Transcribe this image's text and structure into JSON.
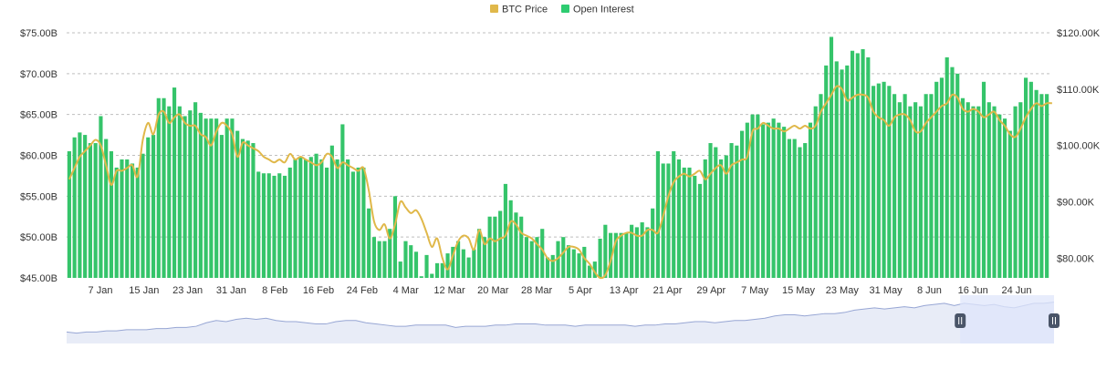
{
  "legend": {
    "items": [
      {
        "label": "BTC Price",
        "color": "#e0b84a"
      },
      {
        "label": "Open Interest",
        "color": "#2ecc71"
      }
    ],
    "position": "top-center"
  },
  "colors": {
    "oi_bar": "#35c46a",
    "price_line": "#e0b84a",
    "grid": "#bfbfbf",
    "navigator_fill": "#e8ecf7",
    "navigator_line": "#97a6d4",
    "navigator_selection": "#dfe6fb",
    "handle": "#4a5568"
  },
  "chart_data": {
    "type": "bar",
    "title": "",
    "grid": true,
    "y_left": {
      "min": 45,
      "max": 75,
      "unit": "B",
      "ticks": [
        "$75.00B",
        "$70.00B",
        "$65.00B",
        "$60.00B",
        "$55.00B",
        "$50.00B",
        "$45.00B"
      ]
    },
    "y_right": {
      "min": 76.5,
      "max": 120,
      "unit": "K",
      "ticks": [
        {
          "label": "$120.00K",
          "value": 120
        },
        {
          "label": "$110.00K",
          "value": 110
        },
        {
          "label": "$100.00K",
          "value": 100
        },
        {
          "label": "$90.00K",
          "value": 90
        },
        {
          "label": "$80.00K",
          "value": 80
        }
      ]
    },
    "x_ticks": [
      "7 Jan",
      "15 Jan",
      "23 Jan",
      "31 Jan",
      "8 Feb",
      "16 Feb",
      "24 Feb",
      "4 Mar",
      "12 Mar",
      "20 Mar",
      "28 Mar",
      "5 Apr",
      "13 Apr",
      "21 Apr",
      "29 Apr",
      "7 May",
      "15 May",
      "23 May",
      "31 May",
      "8 Jun",
      "16 Jun",
      "24 Jun"
    ],
    "series": [
      {
        "name": "Open Interest",
        "axis": "left",
        "values": [
          60.5,
          62.2,
          62.8,
          62.5,
          61.5,
          61.5,
          64.8,
          62.0,
          60.5,
          58.5,
          59.5,
          59.5,
          59.0,
          58.5,
          60.2,
          62.2,
          62.5,
          67.0,
          67.0,
          66.0,
          68.3,
          66.0,
          64.8,
          65.5,
          66.5,
          65.2,
          64.5,
          64.5,
          64.5,
          62.5,
          64.5,
          64.5,
          63.0,
          62.0,
          61.8,
          61.5,
          58.0,
          57.8,
          57.8,
          57.5,
          57.8,
          57.5,
          58.5,
          59.5,
          59.8,
          59.5,
          59.8,
          60.2,
          59.5,
          58.5,
          61.2,
          59.5,
          63.8,
          59.5,
          58.0,
          58.5,
          58.5,
          53.5,
          50.0,
          49.5,
          49.5,
          51.0,
          55.0,
          47.0,
          49.5,
          49.0,
          48.2,
          45.2,
          47.8,
          45.5,
          46.8,
          46.8,
          48.0,
          48.8,
          49.5,
          48.5,
          47.5,
          48.5,
          51.0,
          50.0,
          52.5,
          52.5,
          53.2,
          56.5,
          54.5,
          53.0,
          52.5,
          50.0,
          49.5,
          50.0,
          51.0,
          47.5,
          47.8,
          49.5,
          50.0,
          49.0,
          48.5,
          48.0,
          48.8,
          46.5,
          47.0,
          49.8,
          51.5,
          50.5,
          50.5,
          50.5,
          50.5,
          51.5,
          51.2,
          51.8,
          51.2,
          53.5,
          60.5,
          59.0,
          59.0,
          60.5,
          59.5,
          58.5,
          58.5,
          57.5,
          56.5,
          59.5,
          61.5,
          61.0,
          59.5,
          60.0,
          61.5,
          61.2,
          63.0,
          64.0,
          65.0,
          65.0,
          63.8,
          64.0,
          64.5,
          64.0,
          63.5,
          62.0,
          62.0,
          61.0,
          61.5,
          64.0,
          66.0,
          67.5,
          71.0,
          74.5,
          71.5,
          70.5,
          71.0,
          72.8,
          72.5,
          73.0,
          72.0,
          68.5,
          68.8,
          69.0,
          68.5,
          67.5,
          66.5,
          67.5,
          66.0,
          66.5,
          66.0,
          67.5,
          67.5,
          69.0,
          69.5,
          72.0,
          70.8,
          70.0,
          67.0,
          66.5,
          66.0,
          66.0,
          69.0,
          66.5,
          66.0,
          65.0,
          64.5,
          63.0,
          66.0,
          66.5,
          69.5,
          69.0,
          68.0,
          67.5,
          67.5
        ]
      },
      {
        "name": "BTC Price",
        "axis": "right",
        "values": [
          94.0,
          96.0,
          98.0,
          99.0,
          100.0,
          101.0,
          100.0,
          96.5,
          93.0,
          95.5,
          95.5,
          96.0,
          96.5,
          94.5,
          101.0,
          104.0,
          102.0,
          105.5,
          106.0,
          104.0,
          105.0,
          105.5,
          104.0,
          103.5,
          103.5,
          102.0,
          101.5,
          100.0,
          102.5,
          104.0,
          103.5,
          102.0,
          98.0,
          100.5,
          100.0,
          99.5,
          99.0,
          98.0,
          97.5,
          97.0,
          97.5,
          97.0,
          98.5,
          97.5,
          98.0,
          97.5,
          97.0,
          96.5,
          97.0,
          98.5,
          98.0,
          96.0,
          97.0,
          96.5,
          96.0,
          95.5,
          96.0,
          92.0,
          86.5,
          85.0,
          86.0,
          83.5,
          86.0,
          90.0,
          89.0,
          88.0,
          88.5,
          87.0,
          84.5,
          82.0,
          83.5,
          80.0,
          78.0,
          80.5,
          83.0,
          84.0,
          83.5,
          81.5,
          85.0,
          82.5,
          83.5,
          83.0,
          83.5,
          84.0,
          86.5,
          86.0,
          84.5,
          84.0,
          83.5,
          82.5,
          81.5,
          80.0,
          79.5,
          80.0,
          81.0,
          82.0,
          82.0,
          81.5,
          80.0,
          79.0,
          77.5,
          76.5,
          77.0,
          79.5,
          83.0,
          84.0,
          84.5,
          84.5,
          84.0,
          84.0,
          85.0,
          85.0,
          84.5,
          87.5,
          91.0,
          93.5,
          94.5,
          95.0,
          94.5,
          95.0,
          95.5,
          94.0,
          95.0,
          96.0,
          96.5,
          95.0,
          96.5,
          97.0,
          97.5,
          98.0,
          102.5,
          103.0,
          104.0,
          103.5,
          103.0,
          103.0,
          102.5,
          103.0,
          103.5,
          103.0,
          103.5,
          103.0,
          103.5,
          106.0,
          107.5,
          109.0,
          110.5,
          110.0,
          108.0,
          108.5,
          109.0,
          109.0,
          108.5,
          106.0,
          105.0,
          104.5,
          103.5,
          105.0,
          105.5,
          105.5,
          104.5,
          102.5,
          102.5,
          104.0,
          105.0,
          106.0,
          107.0,
          107.5,
          109.0,
          108.5,
          106.5,
          106.0,
          106.5,
          106.0,
          105.0,
          105.5,
          106.0,
          104.5,
          103.5,
          102.0,
          101.5,
          103.0,
          105.0,
          106.5,
          107.5,
          107.0,
          107.5,
          107.5
        ]
      }
    ],
    "navigator": {
      "selection_fraction": [
        0.905,
        1.0
      ],
      "values": [
        80,
        79,
        80,
        80,
        81,
        81,
        82,
        82,
        82,
        83,
        83,
        84,
        84,
        85,
        88,
        90,
        89,
        91,
        92,
        91,
        92,
        90,
        89,
        89,
        88,
        87,
        87,
        89,
        90,
        90,
        88,
        87,
        86,
        85,
        85,
        86,
        86,
        86,
        86,
        84,
        85,
        85,
        85,
        86,
        86,
        87,
        87,
        87,
        86,
        86,
        86,
        85,
        86,
        86,
        86,
        86,
        86,
        85,
        86,
        86,
        87,
        87,
        88,
        89,
        89,
        88,
        89,
        90,
        90,
        91,
        92,
        94,
        95,
        95,
        94,
        95,
        96,
        96,
        97,
        99,
        100,
        101,
        100,
        101,
        102,
        101,
        103,
        104,
        105,
        103,
        105,
        104,
        103,
        104,
        102,
        101,
        103,
        105,
        105,
        106
      ]
    }
  }
}
